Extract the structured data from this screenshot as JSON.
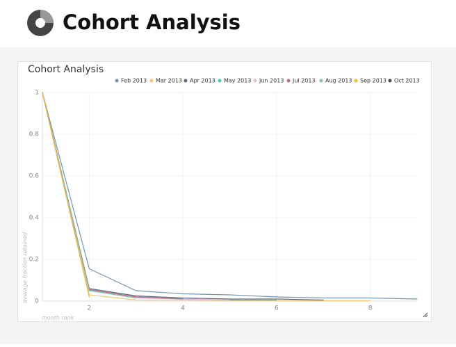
{
  "header": {
    "title": "Cohort Analysis"
  },
  "chart_data": {
    "type": "line",
    "title": "Cohort Analysis",
    "x_label": "month rank",
    "y_label": "average fraction retained",
    "x": [
      1,
      2,
      3,
      4,
      5,
      6,
      7,
      8,
      9
    ],
    "series": [
      {
        "name": "Feb 2013",
        "color": "#7393b3",
        "values": [
          1,
          0.155,
          0.05,
          0.035,
          0.03,
          0.02,
          0.015,
          0.015,
          0.01
        ]
      },
      {
        "name": "Mar 2013",
        "color": "#f5c67a",
        "values": [
          1,
          0.03,
          0.005,
          0.005,
          0.003,
          0.002,
          0.002,
          0.002,
          null
        ]
      },
      {
        "name": "Apr 2013",
        "color": "#5c6a7e",
        "values": [
          1,
          0.06,
          0.025,
          0.015,
          0.01,
          0.01,
          0.005,
          null,
          null
        ]
      },
      {
        "name": "May 2013",
        "color": "#4fc0c0",
        "values": [
          1,
          0.055,
          0.02,
          0.01,
          0.005,
          0.005,
          null,
          null,
          null
        ]
      },
      {
        "name": "Jun 2013",
        "color": "#f2b8d8",
        "values": [
          1,
          0.05,
          0.015,
          0.01,
          0.005,
          null,
          null,
          null,
          null
        ]
      },
      {
        "name": "Jul 2013",
        "color": "#b56a80",
        "values": [
          1,
          0.055,
          0.02,
          0.01,
          null,
          null,
          null,
          null,
          null
        ]
      },
      {
        "name": "Aug 2013",
        "color": "#86c2b0",
        "values": [
          1,
          0.05,
          0.015,
          null,
          null,
          null,
          null,
          null,
          null
        ]
      },
      {
        "name": "Sep 2013",
        "color": "#f3b52e",
        "values": [
          1,
          0.02,
          null,
          null,
          null,
          null,
          null,
          null,
          null
        ]
      },
      {
        "name": "Oct 2013",
        "color": "#4a4a66",
        "values": [
          1,
          null,
          null,
          null,
          null,
          null,
          null,
          null,
          null
        ]
      }
    ],
    "xlim": [
      1,
      9
    ],
    "xticks": [
      2,
      4,
      6,
      8
    ],
    "ylim": [
      0,
      1
    ],
    "yticks": [
      0,
      0.2,
      0.4,
      0.6,
      0.8,
      1
    ],
    "grid": true
  }
}
